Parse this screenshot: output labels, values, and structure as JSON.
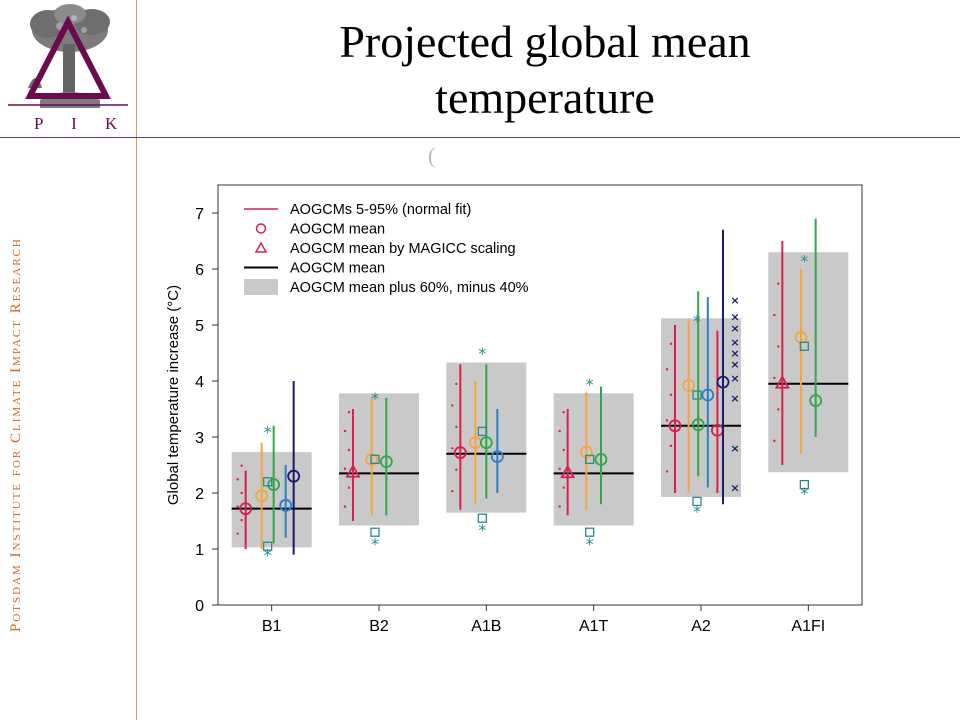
{
  "slide": {
    "title": "Projected global mean temperature",
    "sidebar_text": "Potsdam Institute for Climate Impact Research",
    "logo_letters": "P I K",
    "stray_mark": "("
  },
  "colors": {
    "brand": "#6b0a4f",
    "sidebar_text": "#c96a2a",
    "rule_line": "#c8a463",
    "box_fill": "#c9c9c9"
  },
  "chart_data": {
    "type": "box-range",
    "ylabel": "Global temperature increase (°C)",
    "xlabel": "",
    "ylim": [
      0,
      7.5
    ],
    "yticks": [
      0,
      1,
      2,
      3,
      4,
      5,
      6,
      7
    ],
    "categories": [
      "B1",
      "B2",
      "A1B",
      "A1T",
      "A2",
      "A1FI"
    ],
    "legend": [
      {
        "label": "AOGCMs 5-95% (normal fit)",
        "symbol": "line",
        "color": "#d6204e"
      },
      {
        "label": "AOGCM mean",
        "symbol": "circle",
        "color": "#d6204e"
      },
      {
        "label": "AOGCM mean by MAGICC scaling",
        "symbol": "triangle",
        "color": "#d6204e"
      },
      {
        "label": "AOGCM mean",
        "symbol": "line",
        "color": "#000000"
      },
      {
        "label": "AOGCM mean plus 60%, minus 40%",
        "symbol": "box",
        "color": "#c9c9c9"
      }
    ],
    "legend_position": "top-left",
    "series_colors": [
      "#d6204e",
      "#f2a541",
      "#2ea84a",
      "#2a7fc7"
    ],
    "groups": [
      {
        "category": "B1",
        "box": [
          1.03,
          2.73
        ],
        "mean": 1.72,
        "marker": "circle",
        "marker_value": 1.72,
        "ranges": [
          [
            1.0,
            2.4
          ],
          [
            1.0,
            2.9
          ],
          [
            1.1,
            3.2
          ],
          [
            1.2,
            2.5
          ]
        ],
        "ranges_means": [
          1.72,
          1.95,
          2.15,
          1.78
        ],
        "extra_range": {
          "range": [
            0.9,
            4.0
          ],
          "mean": 2.3,
          "color": "#1a1a6e"
        },
        "stars": [
          0.9,
          3.1
        ],
        "squares": [
          1.05,
          2.2
        ]
      },
      {
        "category": "B2",
        "box": [
          1.42,
          3.78
        ],
        "mean": 2.35,
        "marker": "triangle",
        "marker_value": 2.38,
        "ranges": [
          [
            1.5,
            3.5
          ],
          [
            1.6,
            3.7
          ],
          [
            1.6,
            3.7
          ]
        ],
        "ranges_means": [
          2.27,
          2.6,
          2.56
        ],
        "stars": [
          1.1,
          3.7
        ],
        "squares": [
          1.3,
          2.6
        ]
      },
      {
        "category": "A1B",
        "box": [
          1.65,
          4.33
        ],
        "mean": 2.7,
        "marker": "circle",
        "marker_value": 2.72,
        "ranges": [
          [
            1.7,
            4.3
          ],
          [
            1.8,
            4.0
          ],
          [
            1.9,
            4.3
          ],
          [
            2.0,
            3.5
          ]
        ],
        "ranges_means": [
          2.45,
          2.9,
          2.9,
          2.65
        ],
        "stars": [
          1.35,
          4.5
        ],
        "squares": [
          1.55,
          3.1
        ]
      },
      {
        "category": "A1T",
        "box": [
          1.42,
          3.78
        ],
        "mean": 2.35,
        "marker": "triangle",
        "marker_value": 2.37,
        "ranges": [
          [
            1.6,
            3.5
          ],
          [
            1.7,
            3.8
          ],
          [
            1.8,
            3.9
          ]
        ],
        "ranges_means": [
          2.27,
          2.73,
          2.6
        ],
        "stars": [
          1.1,
          3.95
        ],
        "squares": [
          1.3,
          2.6
        ]
      },
      {
        "category": "A2",
        "box": [
          1.93,
          5.12
        ],
        "mean": 3.2,
        "marker": "circle",
        "marker_value": 3.2,
        "ranges": [
          [
            2.0,
            5.0
          ],
          [
            2.0,
            5.1
          ],
          [
            2.3,
            5.6
          ],
          [
            2.1,
            5.5
          ],
          [
            2.0,
            4.9
          ]
        ],
        "ranges_means": [
          3.35,
          3.92,
          3.22,
          3.75,
          3.12
        ],
        "extra_range": {
          "range": [
            1.8,
            6.7
          ],
          "mean": 3.98,
          "color": "#1a1a6e"
        },
        "stars": [
          1.68,
          5.08
        ],
        "squares": [
          1.85,
          3.75
        ],
        "crosses": [
          2.1,
          2.8,
          3.7,
          4.05,
          4.3,
          4.5,
          4.7,
          4.95,
          5.15,
          5.45
        ]
      },
      {
        "category": "A1FI",
        "box": [
          2.37,
          6.3
        ],
        "mean": 3.95,
        "marker": "triangle",
        "marker_value": 3.97,
        "ranges": [
          [
            2.5,
            6.5
          ],
          [
            2.7,
            6.0
          ],
          [
            3.0,
            6.9
          ]
        ],
        "ranges_means": [
          4.0,
          4.78,
          3.65
        ],
        "stars": [
          2.0,
          6.15
        ],
        "squares": [
          2.15,
          4.62
        ]
      }
    ]
  }
}
